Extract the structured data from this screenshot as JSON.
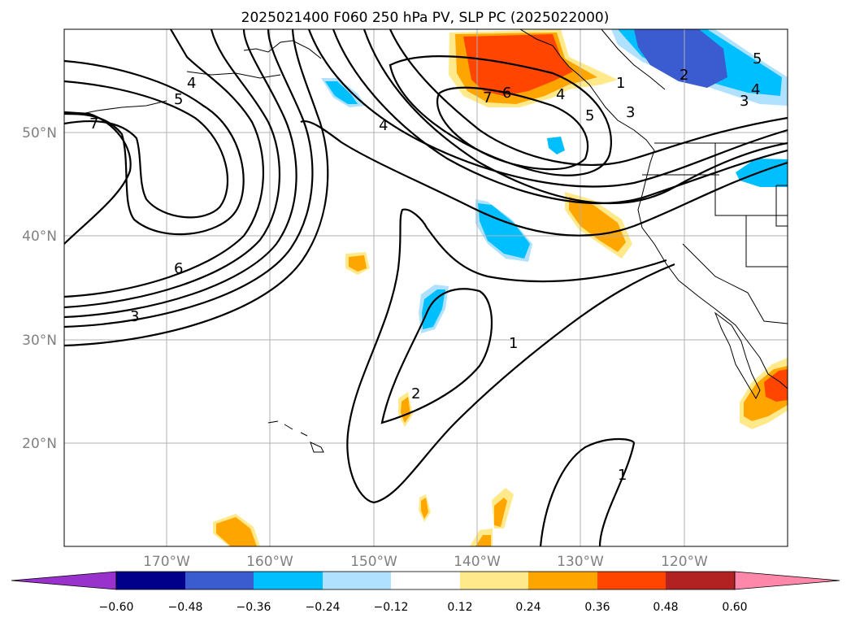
{
  "title": "2025021400 F060 250 hPa PV, SLP PC (2025022000)",
  "lat_labels": [
    "50°N",
    "40°N",
    "30°N",
    "20°N"
  ],
  "lon_labels": [
    "170°W",
    "160°W",
    "150°W",
    "140°W",
    "130°W",
    "120°W"
  ],
  "colorbar": {
    "ticks": [
      "−0.60",
      "−0.48",
      "−0.36",
      "−0.24",
      "−0.12",
      "0.12",
      "0.24",
      "0.36",
      "0.48",
      "0.60"
    ],
    "colors": [
      "#9932cc",
      "#00008b",
      "#3b5bd0",
      "#00bfff",
      "#b0e2ff",
      "#ffffff",
      "#ffe98a",
      "#ffa500",
      "#ff4500",
      "#b22222",
      "#ff88aa"
    ]
  },
  "contour_labels": [
    "4",
    "5",
    "7",
    "6",
    "3",
    "4",
    "7",
    "6",
    "4",
    "5",
    "3",
    "1",
    "2",
    "3",
    "4",
    "5",
    "1",
    "2",
    "1"
  ]
}
